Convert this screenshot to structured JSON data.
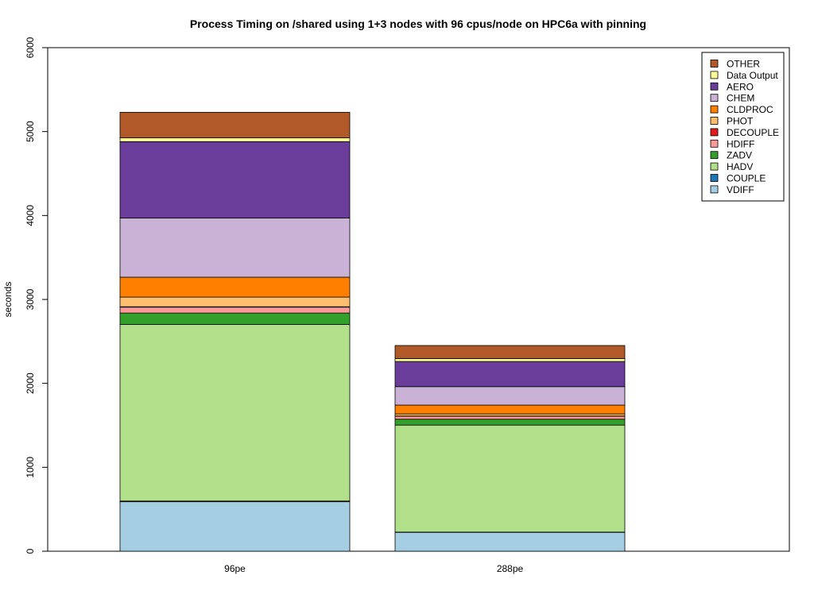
{
  "chart_data": {
    "type": "bar",
    "stacked": true,
    "title": "Process Timing on /shared using 1+3 nodes with 96 cpus/node on HPC6a with pinning",
    "xlabel": "",
    "ylabel": "seconds",
    "ylim": [
      0,
      6000
    ],
    "yticks": [
      0,
      1000,
      2000,
      3000,
      4000,
      5000,
      6000
    ],
    "categories": [
      "96pe",
      "288pe"
    ],
    "legend_position": "top-right",
    "series": [
      {
        "name": "VDIFF",
        "color": "#A6CEE3",
        "values": [
          590,
          225
        ]
      },
      {
        "name": "COUPLE",
        "color": "#1F78B4",
        "values": [
          8,
          3
        ]
      },
      {
        "name": "HADV",
        "color": "#B2DF8A",
        "values": [
          2105,
          1275
        ]
      },
      {
        "name": "ZADV",
        "color": "#33A02C",
        "values": [
          135,
          70
        ]
      },
      {
        "name": "HDIFF",
        "color": "#FB9A99",
        "values": [
          70,
          35
        ]
      },
      {
        "name": "DECOUPLE",
        "color": "#E31A1C",
        "values": [
          5,
          3
        ]
      },
      {
        "name": "PHOT",
        "color": "#FDBF6F",
        "values": [
          115,
          25
        ]
      },
      {
        "name": "CLDPROC",
        "color": "#FF7F00",
        "values": [
          237,
          105
        ]
      },
      {
        "name": "CHEM",
        "color": "#CAB2D6",
        "values": [
          705,
          220
        ]
      },
      {
        "name": "AERO",
        "color": "#6A3D9A",
        "values": [
          910,
          300
        ]
      },
      {
        "name": "Data Output",
        "color": "#FFFF99",
        "values": [
          45,
          35
        ]
      },
      {
        "name": "OTHER",
        "color": "#B15928",
        "values": [
          305,
          155
        ]
      }
    ]
  }
}
